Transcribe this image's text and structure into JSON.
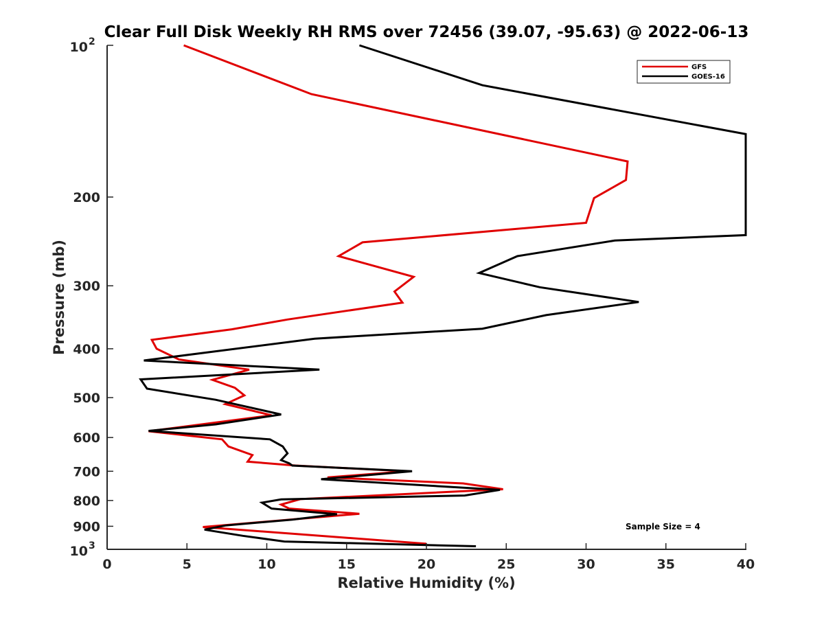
{
  "chart_data": {
    "type": "line",
    "title": "Clear Full Disk Weekly RH RMS over 72456 (39.07, -95.63) @ 2022-06-13",
    "xlabel": "Relative Humidity (%)",
    "ylabel": "Pressure (mb)",
    "xlim": [
      0,
      40
    ],
    "ylim": [
      100,
      1000
    ],
    "yscale": "log",
    "y_reversed": true,
    "grid": false,
    "legend_position": "top-right",
    "x_ticks": [
      "0",
      "5",
      "10",
      "15",
      "20",
      "25",
      "30",
      "35",
      "40"
    ],
    "y_ticks": [
      {
        "value": 100,
        "base": "10",
        "exp": "2"
      },
      {
        "value": 200,
        "label": "200"
      },
      {
        "value": 300,
        "label": "300"
      },
      {
        "value": 400,
        "label": "400"
      },
      {
        "value": 500,
        "label": "500"
      },
      {
        "value": 600,
        "label": "600"
      },
      {
        "value": 700,
        "label": "700"
      },
      {
        "value": 800,
        "label": "800"
      },
      {
        "value": 900,
        "label": "900"
      },
      {
        "value": 1000,
        "base": "10",
        "exp": "3"
      }
    ],
    "annotation": "Sample Size = 4",
    "series": [
      {
        "name": "GFS",
        "color": "#e00000",
        "points": [
          [
            4.8,
            100
          ],
          [
            12.8,
            125
          ],
          [
            32.6,
            170
          ],
          [
            32.5,
            185
          ],
          [
            30.5,
            201
          ],
          [
            30.0,
            225
          ],
          [
            16.0,
            246
          ],
          [
            14.5,
            262
          ],
          [
            19.2,
            288
          ],
          [
            18.0,
            308
          ],
          [
            18.5,
            324
          ],
          [
            11.3,
            350
          ],
          [
            7.8,
            366
          ],
          [
            2.8,
            384
          ],
          [
            3.1,
            400
          ],
          [
            4.5,
            420
          ],
          [
            8.9,
            440
          ],
          [
            6.6,
            461
          ],
          [
            8.0,
            478
          ],
          [
            8.6,
            495
          ],
          [
            7.4,
            515
          ],
          [
            10.3,
            542
          ],
          [
            2.6,
            583
          ],
          [
            7.2,
            605
          ],
          [
            7.6,
            625
          ],
          [
            9.1,
            650
          ],
          [
            8.8,
            670
          ],
          [
            11.8,
            682
          ],
          [
            18.8,
            700
          ],
          [
            13.8,
            720
          ],
          [
            22.3,
            740
          ],
          [
            24.8,
            760
          ],
          [
            12.1,
            795
          ],
          [
            10.9,
            815
          ],
          [
            11.4,
            830
          ],
          [
            15.8,
            850
          ],
          [
            6.0,
            903
          ],
          [
            20.0,
            975
          ]
        ]
      },
      {
        "name": "GOES-16",
        "color": "#000000",
        "points": [
          [
            15.8,
            100
          ],
          [
            23.5,
            120
          ],
          [
            40.0,
            150
          ],
          [
            40.0,
            238
          ],
          [
            31.8,
            244
          ],
          [
            25.7,
            262
          ],
          [
            23.3,
            283
          ],
          [
            27.1,
            302
          ],
          [
            33.3,
            323
          ],
          [
            27.5,
            343
          ],
          [
            23.5,
            365
          ],
          [
            13.0,
            382
          ],
          [
            2.3,
            422
          ],
          [
            13.3,
            440
          ],
          [
            2.1,
            460
          ],
          [
            2.5,
            480
          ],
          [
            6.8,
            505
          ],
          [
            10.9,
            540
          ],
          [
            6.8,
            565
          ],
          [
            2.6,
            582
          ],
          [
            10.2,
            605
          ],
          [
            11.0,
            625
          ],
          [
            11.3,
            645
          ],
          [
            10.9,
            665
          ],
          [
            11.4,
            675
          ],
          [
            11.6,
            682
          ],
          [
            19.1,
            700
          ],
          [
            13.4,
            726
          ],
          [
            24.6,
            762
          ],
          [
            22.4,
            782
          ],
          [
            10.9,
            796
          ],
          [
            9.7,
            808
          ],
          [
            10.3,
            830
          ],
          [
            14.4,
            852
          ],
          [
            11.6,
            873
          ],
          [
            7.4,
            897
          ],
          [
            6.1,
            914
          ],
          [
            8.5,
            940
          ],
          [
            11.1,
            965
          ],
          [
            23.1,
            986
          ]
        ]
      }
    ]
  }
}
